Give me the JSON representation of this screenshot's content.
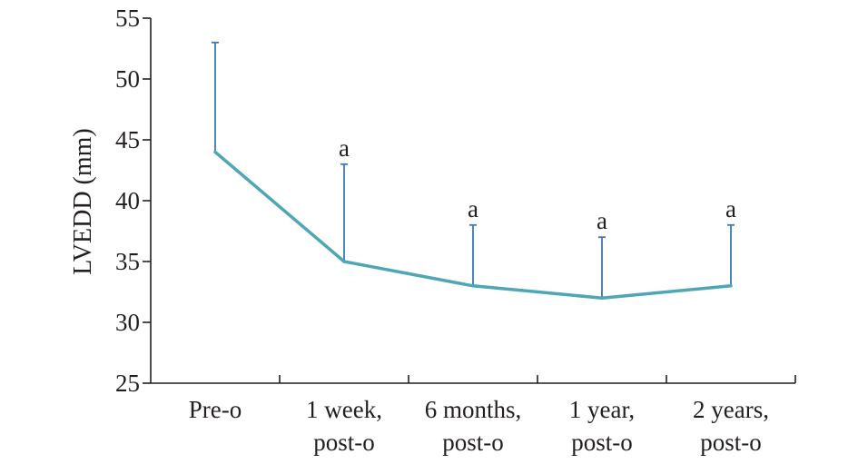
{
  "chart_data": {
    "type": "line",
    "categories": [
      [
        "Pre-o"
      ],
      [
        "1 week,",
        "post-o"
      ],
      [
        "6 months,",
        "post-o"
      ],
      [
        "1 year,",
        "post-o"
      ],
      [
        "2 years,",
        "post-o"
      ]
    ],
    "values": [
      44,
      35,
      33,
      32,
      33
    ],
    "error_upper": [
      53,
      43,
      38,
      37,
      38
    ],
    "annotations": [
      "",
      "a",
      "a",
      "a",
      "a"
    ],
    "ylabel": "LVEDD (mm)",
    "xlabel": "",
    "ylim": [
      25,
      55
    ],
    "yticks": [
      25,
      30,
      35,
      40,
      45,
      50,
      55
    ],
    "grid": false,
    "colors": {
      "line": "#4ea6b7",
      "error_bar": "#3b78b5",
      "axis": "#231f20"
    }
  }
}
